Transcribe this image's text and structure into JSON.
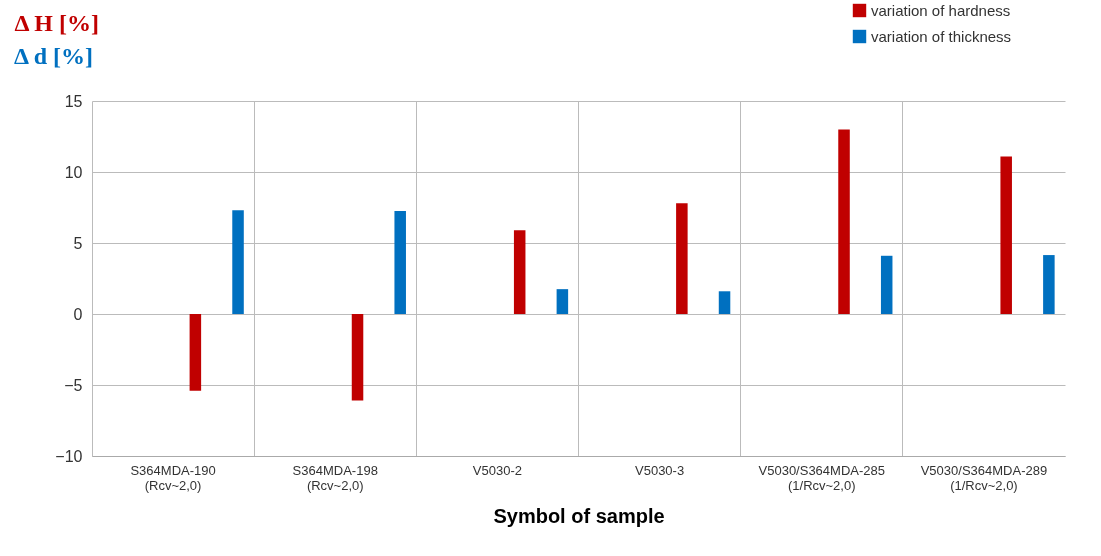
{
  "chart_data": {
    "type": "bar",
    "xlabel": "Symbol of sample",
    "ylabel": "Δ H [%]",
    "annotations": [
      "Δ d [%]"
    ],
    "categories": [
      "S364MDA-190\n(Rcv~2,0)",
      "S364MDA-198\n(Rcv~2,0)",
      "V5030-2",
      "V5030-3",
      "V5030/S364MDA-285\n(1/Rcv~2,0)",
      "V5030/S364MDA-289\n(1/Rcv~2,0)"
    ],
    "series": [
      {
        "name": "variation of hardness",
        "color": "#c00000",
        "values": [
          -5.4,
          -6.1,
          5.9,
          7.8,
          13.0,
          11.1
        ]
      },
      {
        "name": "variation of thickness",
        "color": "#0070c0",
        "values": [
          7.3,
          7.25,
          1.75,
          1.6,
          4.1,
          4.15
        ]
      }
    ],
    "ylim": [
      -10,
      15
    ],
    "yticks": [
      -10,
      -5,
      0,
      5,
      10,
      15
    ],
    "grid": true,
    "legend": "top right"
  }
}
